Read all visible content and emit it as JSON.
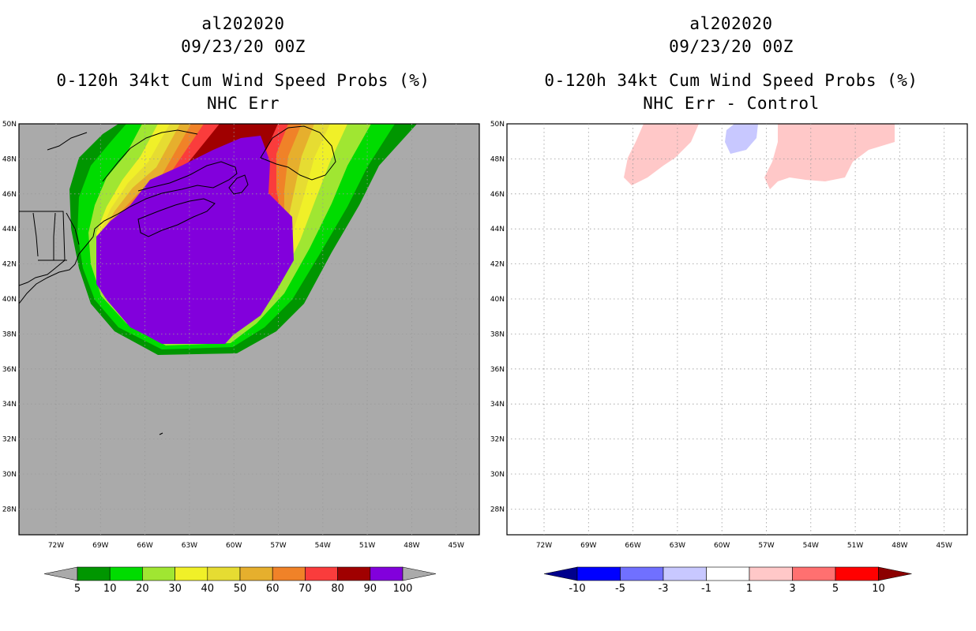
{
  "left_panel": {
    "title_line1": "al202020",
    "title_line2": "09/23/20 00Z",
    "title_line3": "0-120h 34kt Cum Wind Speed Probs (%)",
    "title_line4": "NHC Err",
    "background_color": "#aaaaaa"
  },
  "right_panel": {
    "title_line1": "al202020",
    "title_line2": "09/23/20 00Z",
    "title_line3": "0-120h 34kt Cum Wind Speed Probs (%)",
    "title_line4": "NHC Err - Control",
    "background_color": "#ffffff"
  },
  "axes": {
    "lat_labels": [
      "50N",
      "48N",
      "46N",
      "44N",
      "42N",
      "40N",
      "38N",
      "36N",
      "34N",
      "32N",
      "30N",
      "28N"
    ],
    "lon_labels": [
      "72W",
      "69W",
      "66W",
      "63W",
      "60W",
      "57W",
      "54W",
      "51W",
      "48W",
      "45W"
    ]
  },
  "left_colorbar": {
    "labels": [
      "5",
      "10",
      "20",
      "30",
      "40",
      "50",
      "60",
      "70",
      "80",
      "90",
      "100"
    ],
    "colors": [
      "#009600",
      "#00dc00",
      "#a0e632",
      "#f0f028",
      "#e6dc32",
      "#e6af2d",
      "#f08228",
      "#fa3c3c",
      "#a00000",
      "#8200dc"
    ],
    "end_color": "#aaaaaa"
  },
  "right_colorbar": {
    "labels": [
      "-10",
      "-5",
      "-3",
      "-1",
      "1",
      "3",
      "5",
      "10"
    ],
    "colors": [
      "#0000ff",
      "#7070ff",
      "#c8c8ff",
      "#ffffff",
      "#ffc8c8",
      "#ff7070",
      "#ff0000"
    ],
    "low_end_color": "#00008c",
    "high_end_color": "#8c0000"
  },
  "legend": {
    "probability_colors": [
      "#009600",
      "#00dc00",
      "#a0e632",
      "#f0f028",
      "#e6dc32",
      "#e6af2d",
      "#f08228",
      "#fa3c3c",
      "#a00000",
      "#8200dc"
    ],
    "difference_colors": [
      "#ffc8c8",
      "#c8c8ff"
    ]
  }
}
